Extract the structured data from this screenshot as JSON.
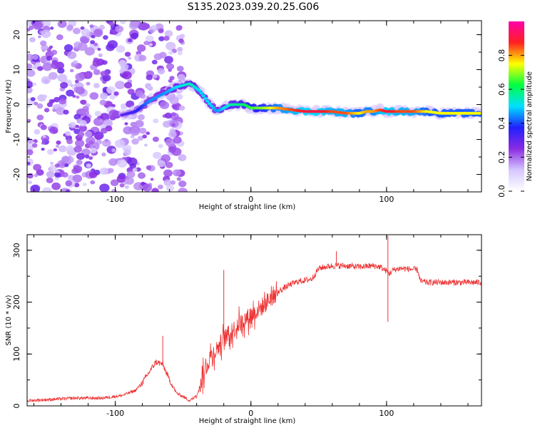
{
  "chart_data": [
    {
      "type": "heatmap",
      "title": "S135.2023.039.20.25.G06",
      "xlabel": "Height of straight line (km)",
      "ylabel": "Frequency (Hz)",
      "xlim": [
        -165,
        170
      ],
      "ylim": [
        -25,
        24
      ],
      "xticks": [
        -100,
        0,
        100
      ],
      "yticks": [
        -20,
        -10,
        0,
        10,
        20
      ],
      "colorbar": {
        "label": "Normalized spectral amplitude",
        "range": [
          0,
          1
        ],
        "ticks": [
          "0.0",
          "0.2",
          "0.4",
          "0.6",
          "0.8"
        ],
        "colormap": [
          "#ffffff",
          "#d6c6ff",
          "#8a2be2",
          "#2020ff",
          "#00e0ff",
          "#00ff40",
          "#ffff00",
          "#ff2020",
          "#ff00aa"
        ]
      },
      "ridge": {
        "x": [
          -95,
          -85,
          -75,
          -65,
          -55,
          -45,
          -38,
          -30,
          -25,
          -20,
          -15,
          -5,
          0,
          10,
          20,
          30,
          40,
          50,
          60,
          70,
          80,
          85,
          90,
          95,
          100,
          110,
          120,
          130,
          140,
          150,
          160,
          170
        ],
        "y": [
          -3,
          -2,
          1,
          3,
          5,
          6,
          4,
          0,
          -2,
          -1,
          0,
          0,
          -1,
          -1,
          -1,
          -1.5,
          -2,
          -2,
          -2,
          -2.5,
          -2.5,
          -2,
          -2,
          -1.5,
          -2,
          -2,
          -2,
          -2,
          -2.5,
          -2.5,
          -2.5,
          -2.5
        ],
        "amplitude": [
          0.3,
          0.35,
          0.45,
          0.45,
          0.5,
          0.55,
          0.5,
          0.5,
          0.45,
          0.5,
          0.55,
          0.6,
          0.65,
          0.7,
          0.8,
          0.85,
          0.9,
          0.9,
          0.85,
          0.85,
          0.75,
          0.8,
          0.8,
          0.85,
          0.9,
          0.85,
          0.85,
          0.75,
          0.75,
          0.75,
          0.75,
          0.75
        ]
      }
    },
    {
      "type": "line",
      "title": "",
      "xlabel": "Height of straight line (km)",
      "ylabel": "SNR (10 * v/v)",
      "xlim": [
        -165,
        170
      ],
      "ylim": [
        0,
        330
      ],
      "xticks": [
        -100,
        0,
        100
      ],
      "yticks": [
        0,
        100,
        200,
        300
      ],
      "color": "#ee3333",
      "series": [
        {
          "x": [
            -165,
            -150,
            -130,
            -110,
            -95,
            -85,
            -80,
            -75,
            -70,
            -65,
            -60,
            -55,
            -50,
            -45,
            -40,
            -35,
            -30,
            -25,
            -20,
            -15,
            -10,
            -5,
            0,
            5,
            10,
            15,
            20,
            25,
            30,
            35,
            40,
            45,
            50,
            55,
            60,
            70,
            80,
            90,
            95,
            100,
            102,
            105,
            110,
            120,
            123,
            125,
            130,
            140,
            150,
            160,
            170
          ],
          "y": [
            10,
            12,
            15,
            15,
            20,
            30,
            45,
            65,
            85,
            80,
            50,
            25,
            18,
            10,
            20,
            60,
            95,
            110,
            130,
            140,
            155,
            165,
            175,
            185,
            195,
            210,
            220,
            228,
            235,
            240,
            242,
            245,
            265,
            268,
            270,
            270,
            268,
            270,
            268,
            260,
            255,
            262,
            265,
            263,
            262,
            240,
            238,
            238,
            238,
            238,
            238
          ]
        }
      ],
      "spikes": [
        {
          "x": -65,
          "y": 135
        },
        {
          "x": -20,
          "y": 262
        },
        {
          "x": 101,
          "y": 328
        },
        {
          "x": 101,
          "y": 162
        },
        {
          "x": 63,
          "y": 298
        }
      ]
    }
  ]
}
